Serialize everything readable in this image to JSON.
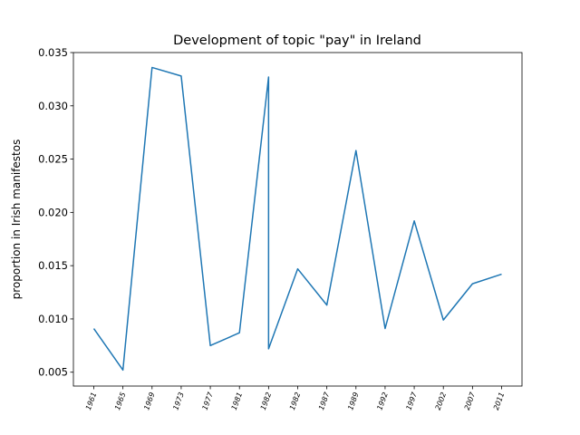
{
  "chart_data": {
    "type": "line",
    "title": "Development of topic \"pay\" in Ireland",
    "y_label": "proportion in Irish manifestos",
    "x": [
      0,
      1,
      2,
      3,
      4,
      5,
      6,
      6,
      7,
      8,
      9,
      10,
      11,
      12,
      13,
      14
    ],
    "xlim": [
      -0.7,
      14.7
    ],
    "xticks": [
      {
        "value": 0,
        "label": "1961"
      },
      {
        "value": 1,
        "label": "1965"
      },
      {
        "value": 2,
        "label": "1969"
      },
      {
        "value": 3,
        "label": "1973"
      },
      {
        "value": 4,
        "label": "1977"
      },
      {
        "value": 5,
        "label": "1981"
      },
      {
        "value": 6,
        "label": "1982"
      },
      {
        "value": 7,
        "label": "1982"
      },
      {
        "value": 8,
        "label": "1987"
      },
      {
        "value": 9,
        "label": "1989"
      },
      {
        "value": 10,
        "label": "1992"
      },
      {
        "value": 11,
        "label": "1997"
      },
      {
        "value": 12,
        "label": "2002"
      },
      {
        "value": 13,
        "label": "2007"
      },
      {
        "value": 14,
        "label": "2011"
      }
    ],
    "series": [
      {
        "color": "#1f77b4",
        "values": [
          0.0091,
          0.0052,
          0.0336,
          0.0328,
          0.0075,
          0.0087,
          0.0327,
          0.0072,
          0.0147,
          0.0113,
          0.0258,
          0.0091,
          0.0192,
          0.0099,
          0.0133,
          0.0142
        ]
      }
    ],
    "ylim": [
      0.0037,
      0.035
    ],
    "yticks": [
      0.005,
      {
        "value": 0.01,
        "label": "0.010"
      },
      0.015,
      {
        "value": 0.02,
        "label": "0.020"
      },
      0.025,
      {
        "value": 0.03,
        "label": "0.030"
      },
      0.035
    ],
    "grid": false
  }
}
